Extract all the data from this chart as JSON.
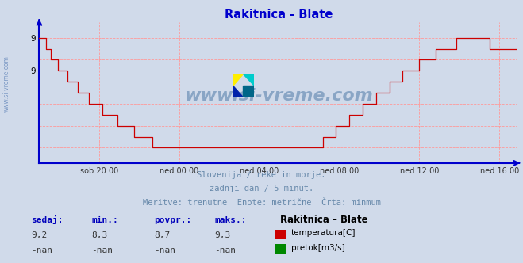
{
  "title": "Rakitnica - Blate",
  "title_color": "#0000cc",
  "bg_color": "#d0daea",
  "plot_bg_color": "#d0daea",
  "grid_color": "#ff9999",
  "line_color": "#cc0000",
  "axis_color": "#0000cc",
  "x_labels": [
    "sob 20:00",
    "ned 00:00",
    "ned 04:00",
    "ned 08:00",
    "ned 12:00",
    "ned 16:00"
  ],
  "x_ticks_idx": [
    36,
    84,
    132,
    180,
    228,
    276
  ],
  "ylim_min": 8.16,
  "ylim_max": 9.44,
  "y_ticks": [
    8.3,
    9.0,
    9.3
  ],
  "y_tick_labels": [
    "",
    "9",
    "9"
  ],
  "footer_line1": "Slovenija / reke in morje.",
  "footer_line2": "zadnji dan / 5 minut.",
  "footer_line3": "Meritve: trenutne  Enote: metrične  Črta: minmum",
  "footer_color": "#6688aa",
  "legend_title": "Rakitnica – Blate",
  "legend_temp_label": "temperatura[C]",
  "legend_flow_label": "pretok[m3/s]",
  "legend_temp_color": "#cc0000",
  "legend_flow_color": "#008800",
  "stat_headers": [
    "sedaj:",
    "min.:",
    "povpr.:",
    "maks.:"
  ],
  "stat_temp": [
    "9,2",
    "8,3",
    "8,7",
    "9,3"
  ],
  "stat_flow": [
    "-nan",
    "-nan",
    "-nan",
    "-nan"
  ],
  "watermark_text": "www.si-vreme.com",
  "watermark_color": "#336699",
  "watermark_alpha": 0.45,
  "sidebar_text": "www.si-vreme.com",
  "sidebar_color": "#6688bb"
}
